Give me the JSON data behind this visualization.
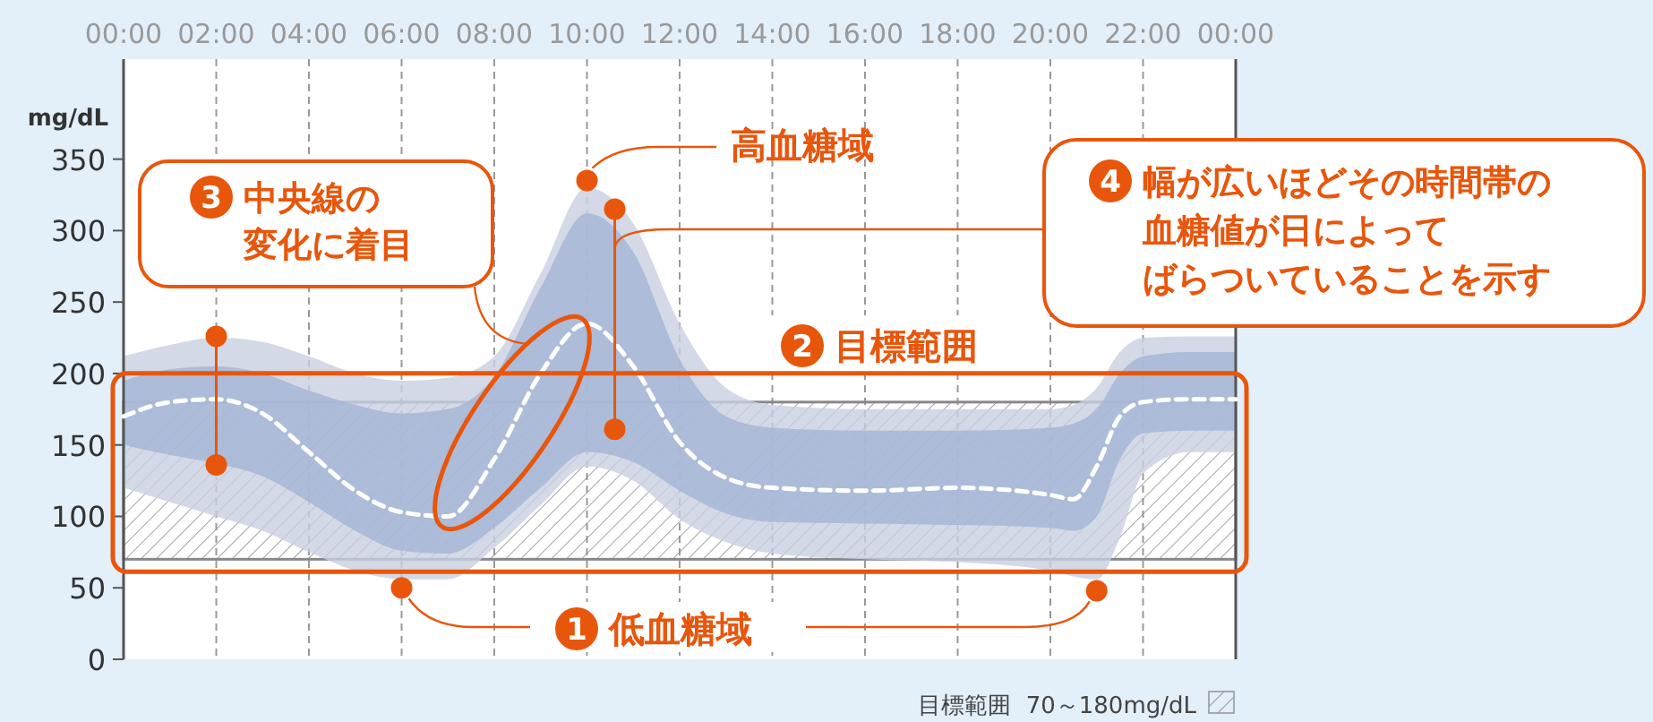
{
  "chart_data": {
    "type": "line",
    "ylabel": "mg/dL",
    "x": [
      0,
      1,
      2,
      3,
      4,
      5,
      6,
      7,
      8,
      9,
      10,
      11,
      12,
      13,
      14,
      16,
      18,
      20,
      20.5,
      21,
      21.5,
      22,
      23,
      24
    ],
    "series": [
      {
        "color": "#c9d0e1",
        "values": [
          null,
          null,
          null,
          null,
          null,
          null,
          null,
          null,
          null,
          null,
          null,
          null,
          null,
          null,
          null,
          null,
          null,
          null,
          null,
          null,
          null,
          null,
          null,
          null
        ],
        "upper": [
          212,
          220,
          225,
          222,
          212,
          200,
          195,
          197,
          212,
          270,
          330,
          305,
          235,
          190,
          178,
          175,
          175,
          175,
          178,
          190,
          215,
          225,
          226,
          226
        ],
        "lower": [
          120,
          110,
          100,
          90,
          75,
          62,
          56,
          56,
          78,
          108,
          135,
          125,
          98,
          82,
          74,
          70,
          68,
          62,
          58,
          56,
          85,
          130,
          145,
          145
        ]
      },
      {
        "type": "line",
        "color": "#a3b4d4",
        "values": [
          null,
          null,
          null,
          null,
          null,
          null,
          null,
          null,
          null,
          null,
          null,
          null,
          null,
          null,
          null,
          null,
          null,
          null,
          null,
          null,
          null,
          null,
          null,
          null
        ],
        "upper": [
          195,
          203,
          205,
          200,
          188,
          178,
          172,
          175,
          198,
          260,
          312,
          285,
          210,
          170,
          162,
          160,
          160,
          162,
          165,
          175,
          200,
          212,
          215,
          215
        ],
        "lower": [
          150,
          143,
          137,
          128,
          110,
          90,
          76,
          74,
          92,
          120,
          145,
          138,
          118,
          102,
          96,
          95,
          94,
          92,
          90,
          100,
          140,
          158,
          160,
          160
        ]
      },
      {
        "type": "line",
        "color": "#ffffff",
        "line_style": "dashed",
        "values": [
          170,
          180,
          182,
          172,
          145,
          118,
          103,
          100,
          140,
          200,
          235,
          205,
          152,
          127,
          120,
          118,
          120,
          115,
          112,
          135,
          170,
          180,
          182,
          182
        ]
      },
      {
        "type": "scatter",
        "color": "#e8560c",
        "marker": "circle",
        "x": [
          6,
          21,
          10,
          2,
          2,
          10.6,
          10.6
        ],
        "values": [
          50,
          48,
          335,
          226,
          136,
          315,
          161
        ]
      }
    ],
    "xlim": [
      0,
      24
    ],
    "xticks": [
      {
        "value": 0,
        "label": "00:00"
      },
      {
        "value": 2,
        "label": "02:00"
      },
      {
        "value": 4,
        "label": "04:00"
      },
      {
        "value": 6,
        "label": "06:00"
      },
      {
        "value": 8,
        "label": "08:00"
      },
      {
        "value": 10,
        "label": "10:00"
      },
      {
        "value": 12,
        "label": "12:00"
      },
      {
        "value": 14,
        "label": "14:00"
      },
      {
        "value": 16,
        "label": "16:00"
      },
      {
        "value": 18,
        "label": "18:00"
      },
      {
        "value": 20,
        "label": "20:00"
      },
      {
        "value": 22,
        "label": "22:00"
      },
      {
        "value": 24,
        "label": "00:00"
      }
    ],
    "ylim": [
      0,
      420
    ],
    "yticks": [
      0,
      50,
      100,
      150,
      200,
      250,
      300,
      350
    ],
    "grid": "x",
    "bands": [
      {
        "axis": "y",
        "from": 70,
        "to": 180,
        "label": "目標範囲  70～180mg/dL",
        "color": "#888888"
      }
    ],
    "annotations": [
      {
        "text": "高血糖域",
        "x": 10,
        "y": 335
      },
      {
        "text": "1 低血糖域",
        "x": 6,
        "y": 50
      },
      "2 目標範囲",
      "3 中央線の",
      "変化に着目",
      "4 幅が広いほどその時間帯の",
      "血糖値が日によって",
      "ばらついていることを示す"
    ]
  }
}
